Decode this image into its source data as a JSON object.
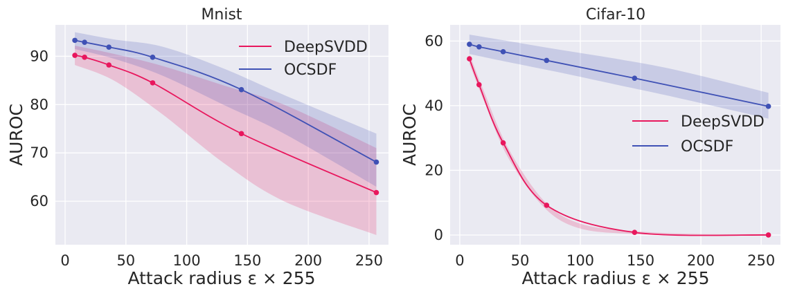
{
  "colors": {
    "background": "#eaeaf2",
    "grid": "#ffffff",
    "deepsvdd": "#e8175d",
    "ocsdf": "#3f51b5"
  },
  "chart_data": [
    {
      "type": "line",
      "title": "Mnist",
      "xlabel": "Attack radius ε × 255",
      "ylabel": "AUROC",
      "xlim": [
        -8,
        266
      ],
      "ylim": [
        51,
        96.5
      ],
      "xticks": [
        0,
        50,
        100,
        150,
        200,
        250
      ],
      "yticks": [
        60,
        70,
        80,
        90
      ],
      "grid": true,
      "legend_position": "upper right",
      "series": [
        {
          "name": "DeepSVDD",
          "color": "#e8175d",
          "x": [
            8,
            16,
            36,
            72,
            145,
            256
          ],
          "y": [
            90.2,
            89.8,
            88.2,
            84.5,
            74.0,
            61.8
          ],
          "band_x": [
            8,
            40,
            80,
            130,
            180,
            256
          ],
          "band_lower": [
            88.2,
            85.0,
            78.0,
            68.0,
            60.0,
            53.0
          ],
          "band_upper": [
            92.2,
            90.5,
            88.0,
            84.0,
            80.0,
            71.0
          ]
        },
        {
          "name": "OCSDF",
          "color": "#3f51b5",
          "x": [
            8,
            16,
            36,
            72,
            145,
            256
          ],
          "y": [
            93.3,
            92.9,
            91.9,
            89.8,
            83.1,
            68.1
          ],
          "band_x": [
            8,
            40,
            80,
            130,
            180,
            256
          ],
          "band_lower": [
            91.5,
            89.5,
            86.0,
            80.0,
            74.0,
            63.0
          ],
          "band_upper": [
            95.0,
            93.5,
            92.0,
            87.5,
            82.0,
            74.0
          ]
        }
      ]
    },
    {
      "type": "line",
      "title": "Cifar-10",
      "xlabel": "Attack radius ε × 255",
      "ylabel": "AUROC",
      "xlim": [
        -8,
        266
      ],
      "ylim": [
        -3,
        65
      ],
      "xticks": [
        0,
        50,
        100,
        150,
        200,
        250
      ],
      "yticks": [
        0,
        20,
        40,
        60
      ],
      "grid": true,
      "legend_position": "center right",
      "series": [
        {
          "name": "DeepSVDD",
          "color": "#e8175d",
          "x": [
            8,
            16,
            36,
            72,
            145,
            256
          ],
          "y": [
            54.5,
            46.5,
            28.5,
            9.2,
            0.8,
            0.0
          ],
          "band_x": [
            8,
            20,
            40,
            70,
            100,
            145,
            200,
            256
          ],
          "band_lower": [
            53.0,
            41.5,
            24.0,
            8.5,
            2.0,
            0.3,
            -0.2,
            -0.2
          ],
          "band_upper": [
            56.0,
            44.5,
            27.0,
            10.5,
            3.5,
            1.2,
            0.3,
            0.3
          ]
        },
        {
          "name": "OCSDF",
          "color": "#3f51b5",
          "x": [
            8,
            16,
            36,
            72,
            145,
            256
          ],
          "y": [
            59.0,
            58.2,
            56.7,
            54.0,
            48.5,
            39.8
          ],
          "band_x": [
            8,
            40,
            80,
            130,
            180,
            256
          ],
          "band_lower": [
            56.0,
            53.5,
            50.5,
            46.5,
            42.5,
            36.0
          ],
          "band_upper": [
            62.0,
            60.0,
            57.5,
            54.5,
            51.0,
            44.0
          ]
        }
      ]
    }
  ]
}
